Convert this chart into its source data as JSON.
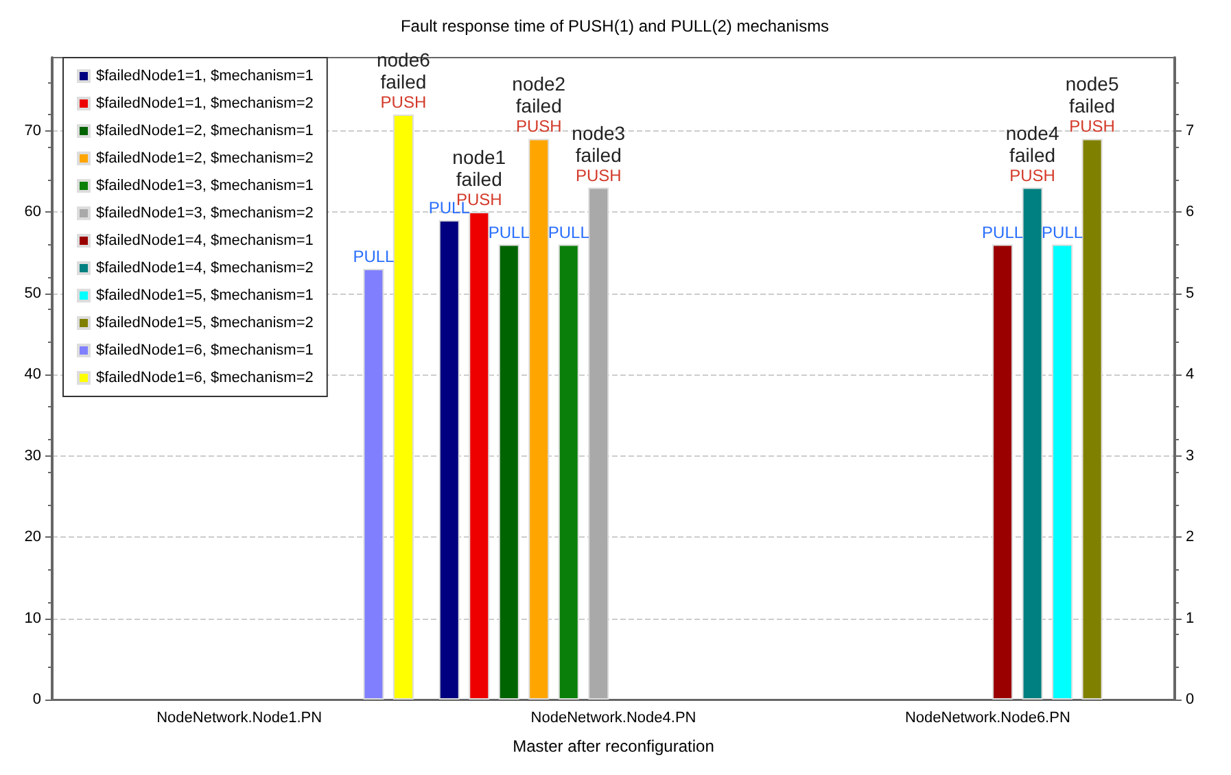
{
  "chart_data": {
    "type": "bar",
    "title": "Fault response time of PUSH(1) and PULL(2) mechanisms",
    "xlabel": "Master after reconfiguration",
    "categories": [
      "NodeNetwork.Node1.PN",
      "NodeNetwork.Node4.PN",
      "NodeNetwork.Node6.PN"
    ],
    "series": [
      {
        "name": "$failedNode1=1, $mechanism=1",
        "color": "#000080",
        "values": [
          null,
          59,
          null
        ],
        "value_labels": [
          null,
          "PULL",
          null
        ]
      },
      {
        "name": "$failedNode1=1, $mechanism=2",
        "color": "#ee0000",
        "values": [
          null,
          60,
          null
        ],
        "value_labels": [
          null,
          "node1\nfailed\nPUSH",
          null
        ]
      },
      {
        "name": "$failedNode1=2, $mechanism=1",
        "color": "#006400",
        "values": [
          null,
          56,
          null
        ],
        "value_labels": [
          null,
          "PULL",
          null
        ]
      },
      {
        "name": "$failedNode1=2, $mechanism=2",
        "color": "#ffa500",
        "values": [
          null,
          69,
          null
        ],
        "value_labels": [
          null,
          "node2\nfailed\nPUSH",
          null
        ]
      },
      {
        "name": "$failedNode1=3, $mechanism=1",
        "color": "#0a800a",
        "values": [
          null,
          56,
          null
        ],
        "value_labels": [
          null,
          "PULL",
          null
        ]
      },
      {
        "name": "$failedNode1=3, $mechanism=2",
        "color": "#a9a9a9",
        "values": [
          null,
          63,
          null
        ],
        "value_labels": [
          null,
          "node3\nfailed\nPUSH",
          null
        ]
      },
      {
        "name": "$failedNode1=4, $mechanism=1",
        "color": "#9b0000",
        "values": [
          null,
          null,
          56
        ],
        "value_labels": [
          null,
          null,
          "PULL"
        ]
      },
      {
        "name": "$failedNode1=4, $mechanism=2",
        "color": "#008080",
        "values": [
          null,
          null,
          63
        ],
        "value_labels": [
          null,
          null,
          "node4\nfailed\nPUSH"
        ]
      },
      {
        "name": "$failedNode1=5, $mechanism=1",
        "color": "#00ffff",
        "values": [
          null,
          null,
          56
        ],
        "value_labels": [
          null,
          null,
          "PULL"
        ]
      },
      {
        "name": "$failedNode1=5, $mechanism=2",
        "color": "#808000",
        "values": [
          null,
          null,
          69
        ],
        "value_labels": [
          null,
          null,
          "node5\nfailed\nPUSH"
        ]
      },
      {
        "name": "$failedNode1=6, $mechanism=1",
        "color": "#8080ff",
        "values": [
          53,
          null,
          null
        ],
        "value_labels": [
          "PULL",
          null,
          null
        ]
      },
      {
        "name": "$failedNode1=6, $mechanism=2",
        "color": "#ffff00",
        "values": [
          72,
          null,
          null
        ],
        "value_labels": [
          "node6\nfailed\nPUSH",
          null,
          null
        ]
      }
    ],
    "ylim": [
      0,
      79
    ],
    "yticks": [
      0,
      10,
      20,
      30,
      40,
      50,
      60,
      70
    ],
    "y2lim": [
      0,
      7.9
    ],
    "y2ticks": [
      0,
      1,
      2,
      3,
      4,
      5,
      6,
      7
    ],
    "grid": "y",
    "legend": "top left"
  }
}
